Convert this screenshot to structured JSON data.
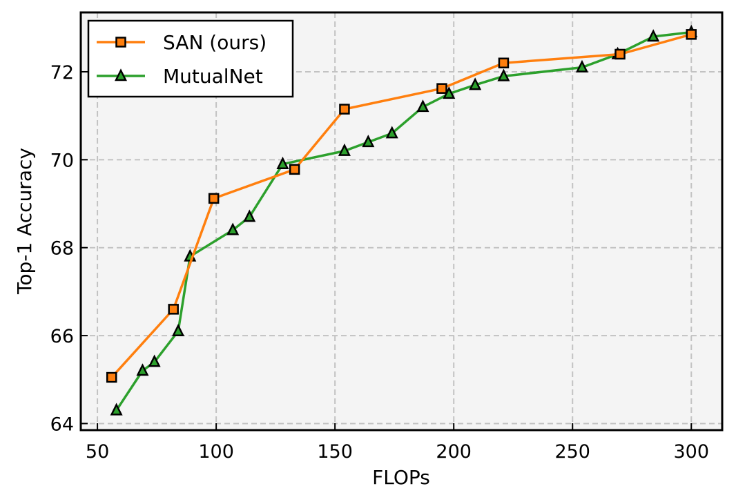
{
  "chart_data": {
    "type": "line",
    "xlabel": "FLOPs",
    "ylabel": "Top-1 Accuracy",
    "xlim": [
      43,
      313
    ],
    "ylim": [
      63.85,
      73.35
    ],
    "xticks": [
      50,
      100,
      150,
      200,
      250,
      300
    ],
    "yticks": [
      64,
      66,
      68,
      70,
      72
    ],
    "grid": true,
    "legend_position": "top-left",
    "series": [
      {
        "name": "SAN (ours)",
        "color": "#ff7f0e",
        "marker": "square",
        "x": [
          56,
          82,
          99,
          133,
          154,
          195,
          221,
          270,
          300
        ],
        "y": [
          65.05,
          66.6,
          69.12,
          69.78,
          71.15,
          71.62,
          72.2,
          72.4,
          72.85
        ]
      },
      {
        "name": "MutualNet",
        "color": "#2ca02c",
        "marker": "triangle",
        "x": [
          58,
          69,
          74,
          84,
          89,
          107,
          114,
          128,
          154,
          164,
          174,
          187,
          198,
          209,
          221,
          254,
          269,
          284,
          300
        ],
        "y": [
          64.3,
          65.2,
          65.4,
          66.1,
          67.8,
          68.4,
          68.7,
          69.9,
          70.2,
          70.4,
          70.6,
          71.2,
          71.5,
          71.7,
          71.9,
          72.1,
          72.4,
          72.8,
          72.9
        ]
      }
    ]
  }
}
